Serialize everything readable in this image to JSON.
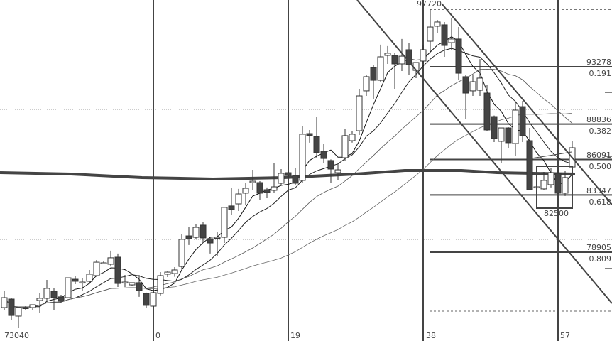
{
  "chart_data": {
    "type": "candlestick",
    "title": "",
    "x_axis": {
      "tick_labels": [
        "0",
        "19",
        "38",
        "57"
      ],
      "tick_indices": [
        0,
        19,
        38,
        57
      ]
    },
    "first_index": -21,
    "candles": [
      [
        74610,
        75880,
        74440,
        75380
      ],
      [
        75270,
        75330,
        73670,
        74000
      ],
      [
        73950,
        74610,
        73040,
        74610
      ],
      [
        74610,
        74720,
        74390,
        74610
      ],
      [
        74610,
        74830,
        74400,
        74830
      ],
      [
        75160,
        75710,
        74220,
        75330
      ],
      [
        75330,
        76760,
        75050,
        76100
      ],
      [
        75880,
        76100,
        74390,
        75380
      ],
      [
        75440,
        75600,
        75000,
        75110
      ],
      [
        75380,
        76920,
        75330,
        76920
      ],
      [
        76810,
        77090,
        76430,
        76650
      ],
      [
        76590,
        76870,
        75880,
        76590
      ],
      [
        76650,
        77530,
        76430,
        77200
      ],
      [
        77090,
        78300,
        77000,
        78130
      ],
      [
        78080,
        78200,
        77970,
        78080
      ],
      [
        77970,
        79020,
        77800,
        78470
      ],
      [
        78520,
        78800,
        76210,
        76480
      ],
      [
        76590,
        77140,
        76210,
        76590
      ],
      [
        76370,
        76540,
        76260,
        76540
      ],
      [
        76540,
        77140,
        75440,
        75930
      ],
      [
        75710,
        75770,
        74610,
        74780
      ],
      [
        74720,
        75770,
        74610,
        75770
      ],
      [
        75710,
        77360,
        75550,
        77090
      ],
      [
        77200,
        77470,
        76980,
        77360
      ],
      [
        77250,
        77750,
        77000,
        77530
      ],
      [
        77800,
        80340,
        77530,
        79900
      ],
      [
        80170,
        80830,
        79460,
        79950
      ],
      [
        80060,
        81050,
        79900,
        80830
      ],
      [
        81000,
        81220,
        79620,
        80010
      ],
      [
        79950,
        80060,
        78800,
        79620
      ],
      [
        80060,
        80450,
        78630,
        80060
      ],
      [
        80060,
        82380,
        79620,
        82380
      ],
      [
        82490,
        83860,
        81820,
        82210
      ],
      [
        82650,
        83810,
        82100,
        83420
      ],
      [
        83480,
        84250,
        82540,
        83860
      ],
      [
        84300,
        85290,
        83750,
        84410
      ],
      [
        84300,
        84410,
        82980,
        83480
      ],
      [
        83750,
        83920,
        83090,
        83530
      ],
      [
        83700,
        85840,
        83530,
        83970
      ],
      [
        84250,
        85350,
        84140,
        85020
      ],
      [
        85070,
        85240,
        84690,
        84850
      ],
      [
        84850,
        85460,
        84080,
        84250
      ],
      [
        84470,
        88710,
        84300,
        88050
      ],
      [
        88100,
        88380,
        87390,
        87940
      ],
      [
        87880,
        89370,
        86230,
        86620
      ],
      [
        86730,
        87330,
        85790,
        86170
      ],
      [
        86010,
        86100,
        84250,
        85350
      ],
      [
        85070,
        85730,
        84470,
        85290
      ],
      [
        86230,
        88430,
        86000,
        87940
      ],
      [
        87550,
        88270,
        87400,
        88050
      ],
      [
        88320,
        91570,
        87990,
        91020
      ],
      [
        91410,
        92670,
        91020,
        92510
      ],
      [
        93220,
        93440,
        90750,
        92230
      ],
      [
        92230,
        94990,
        92120,
        94050
      ],
      [
        94160,
        94880,
        93500,
        94330
      ],
      [
        94160,
        94330,
        91570,
        93500
      ],
      [
        93500,
        95430,
        92950,
        94100
      ],
      [
        94600,
        95100,
        92670,
        93440
      ],
      [
        93000,
        93610,
        92400,
        93610
      ],
      [
        93720,
        94990,
        93500,
        94600
      ],
      [
        95260,
        97720,
        94330,
        96360
      ],
      [
        96420,
        96910,
        95870,
        96750
      ],
      [
        96530,
        96750,
        94050,
        94930
      ],
      [
        95150,
        97080,
        94600,
        95430
      ],
      [
        95430,
        96360,
        92230,
        92780
      ],
      [
        92510,
        92620,
        89200,
        91240
      ],
      [
        91410,
        92670,
        91020,
        92120
      ],
      [
        91460,
        93880,
        91020,
        92400
      ],
      [
        91240,
        91850,
        88270,
        88380
      ],
      [
        89420,
        89500,
        87440,
        87720
      ],
      [
        87500,
        88540,
        85790,
        88540
      ],
      [
        88540,
        88600,
        87000,
        87390
      ],
      [
        87330,
        90580,
        86340,
        89920
      ],
      [
        90190,
        90630,
        87440,
        87940
      ],
      [
        87550,
        88540,
        83750,
        83750
      ],
      [
        83970,
        84080,
        83860,
        83970
      ],
      [
        83810,
        85130,
        83700,
        84470
      ],
      [
        84140,
        85400,
        83920,
        85070
      ],
      [
        85020,
        85290,
        83480,
        83480
      ],
      [
        83480,
        85240,
        83260,
        84690
      ],
      [
        85510,
        87550,
        85400,
        87000
      ]
    ],
    "long_ma": [
      [
        -21.6,
        85070
      ],
      [
        -11.6,
        84960
      ],
      [
        -1.6,
        84690
      ],
      [
        8.4,
        84580
      ],
      [
        18.4,
        84690
      ],
      [
        28.4,
        84960
      ],
      [
        35.4,
        85240
      ],
      [
        43.4,
        85240
      ],
      [
        48.4,
        85070
      ],
      [
        53.4,
        85020
      ],
      [
        59.4,
        84960
      ]
    ],
    "high_label": "97720",
    "low_label": "73040",
    "box_label": "82500",
    "fib_levels": [
      {
        "price": "93278",
        "ratio": "0.191"
      },
      {
        "price": "88836",
        "ratio": "0.382"
      },
      {
        "price": "86091",
        "ratio": "0.500"
      },
      {
        "price": "83347",
        "ratio": "0.618"
      },
      {
        "price": "78905",
        "ratio": "0.809"
      }
    ],
    "colors": {
      "up_fill": "#ffffff",
      "down_fill": "#444444",
      "outline": "#333333",
      "grid": "#444444"
    }
  }
}
